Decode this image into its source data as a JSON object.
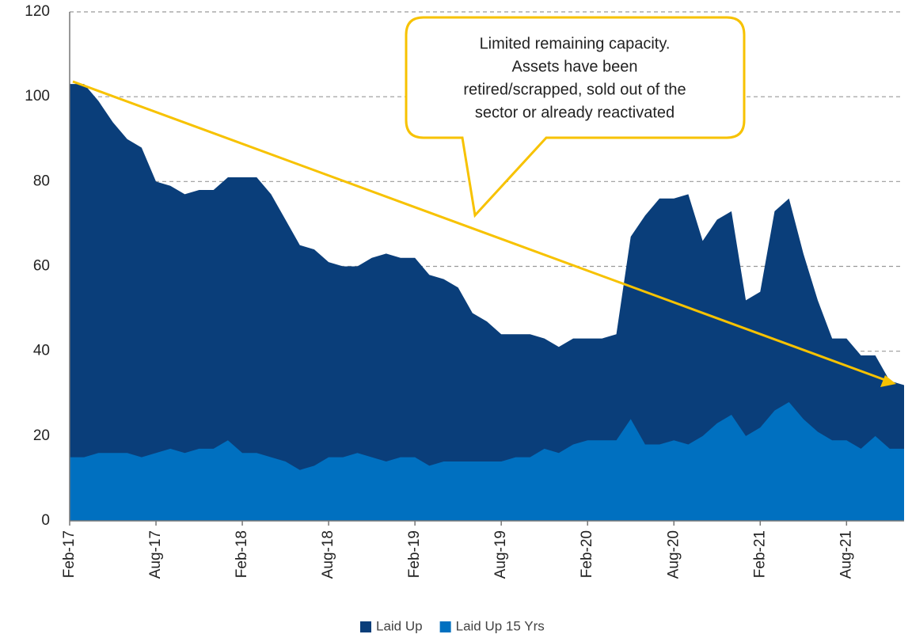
{
  "chart_data": {
    "type": "area",
    "categories": [
      "Feb-17",
      null,
      null,
      null,
      null,
      null,
      "Aug-17",
      null,
      null,
      null,
      null,
      null,
      "Feb-18",
      null,
      null,
      null,
      null,
      null,
      "Aug-18",
      null,
      null,
      null,
      null,
      null,
      "Feb-19",
      null,
      null,
      null,
      null,
      null,
      "Aug-19",
      null,
      null,
      null,
      null,
      null,
      "Feb-20",
      null,
      null,
      null,
      null,
      null,
      "Aug-20",
      null,
      null,
      null,
      null,
      null,
      "Feb-21",
      null,
      null,
      null,
      null,
      null,
      "Aug-21",
      null,
      null,
      null,
      null
    ],
    "series": [
      {
        "name": "Laid Up",
        "color": "#0a3e7a",
        "values": [
          103,
          103,
          99,
          94,
          90,
          88,
          80,
          79,
          77,
          78,
          78,
          81,
          81,
          81,
          77,
          71,
          65,
          64,
          61,
          60,
          60,
          62,
          63,
          62,
          62,
          58,
          57,
          55,
          49,
          47,
          44,
          44,
          44,
          43,
          41,
          43,
          43,
          43,
          44,
          67,
          72,
          76,
          76,
          77,
          66,
          71,
          73,
          52,
          54,
          73,
          76,
          63,
          52,
          43,
          43,
          39,
          39,
          33,
          32
        ]
      },
      {
        "name": "Laid Up 15 Yrs",
        "color": "#0070c0",
        "values": [
          15,
          15,
          16,
          16,
          16,
          15,
          16,
          17,
          16,
          17,
          17,
          19,
          16,
          16,
          15,
          14,
          12,
          13,
          15,
          15,
          16,
          15,
          14,
          15,
          15,
          13,
          14,
          14,
          14,
          14,
          14,
          15,
          15,
          17,
          16,
          18,
          19,
          19,
          19,
          24,
          18,
          18,
          19,
          18,
          20,
          23,
          25,
          20,
          22,
          26,
          28,
          24,
          21,
          19,
          19,
          17,
          20,
          17,
          17
        ]
      }
    ],
    "ylim": [
      0,
      120
    ],
    "yticks": [
      0,
      20,
      40,
      60,
      80,
      100,
      120
    ],
    "grid": true,
    "legend": "bottom",
    "annotation": [
      "Limited remaining capacity.",
      "Assets have been",
      "retired/scrapped, sold out of the",
      "sector or already reactivated"
    ]
  }
}
